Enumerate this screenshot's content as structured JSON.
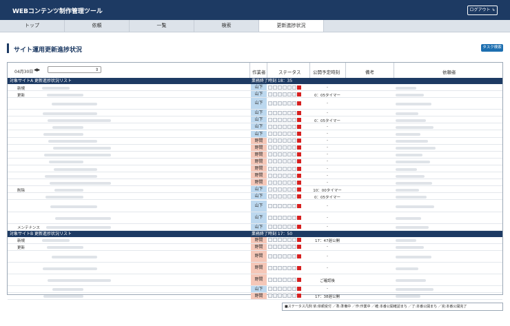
{
  "header": {
    "app_title": "WEBコンテンツ制作管理ツール",
    "logout_label": "ログアウト"
  },
  "tabs": [
    {
      "label": "トップ"
    },
    {
      "label": "依頼"
    },
    {
      "label": "一覧"
    },
    {
      "label": "検索"
    },
    {
      "label": "更新進捗状況",
      "active": true
    }
  ],
  "page": {
    "title": "サイト運用更新進捗状況",
    "task_search_label": "タスク検索"
  },
  "table": {
    "date": "04月30日",
    "columns": {
      "worker": "作業者",
      "status": "ステータス",
      "publish": "公開予定時刻",
      "note": "備考",
      "requester": "依頼者"
    },
    "sections": [
      {
        "name": "対象サイトA 更新進捗状況リスト",
        "end_time": "業務終了時刻 18：35",
        "rows": [
          {
            "category": "新規",
            "worker": "山下",
            "publish": "-"
          },
          {
            "category": "更新",
            "worker": "山下",
            "publish": "0：05タイマー"
          },
          {
            "category": "",
            "worker": "山下",
            "publish": "-"
          },
          {
            "category": "",
            "worker": "山下",
            "publish": "-"
          },
          {
            "category": "",
            "worker": "山下",
            "publish": "0：05タイマー"
          },
          {
            "category": "",
            "worker": "山下",
            "publish": "-"
          },
          {
            "category": "",
            "worker": "山下",
            "publish": "-"
          },
          {
            "category": "",
            "worker": "野間",
            "publish": "-"
          },
          {
            "category": "",
            "worker": "野間",
            "publish": "-"
          },
          {
            "category": "",
            "worker": "野間",
            "publish": "-"
          },
          {
            "category": "",
            "worker": "野間",
            "publish": "-"
          },
          {
            "category": "",
            "worker": "野間",
            "publish": "-"
          },
          {
            "category": "",
            "worker": "野間",
            "publish": "-"
          },
          {
            "category": "",
            "worker": "野間",
            "publish": "-"
          },
          {
            "category": "削除",
            "worker": "山下",
            "publish": "10：00タイマー"
          },
          {
            "category": "",
            "worker": "山下",
            "publish": "0：05タイマー"
          },
          {
            "category": "",
            "worker": "山下",
            "publish": "-"
          },
          {
            "category": "",
            "worker": "山下",
            "publish": "-"
          },
          {
            "category": "メンテナンス",
            "worker": "山下",
            "publish": "-"
          }
        ]
      },
      {
        "name": "対象サイトB 更新進捗状況リスト",
        "end_time": "業務終了時刻 17：50",
        "rows": [
          {
            "category": "新規",
            "worker": "野間",
            "publish": "17：47遅公開"
          },
          {
            "category": "更新",
            "worker": "野間",
            "publish": "-"
          },
          {
            "category": "",
            "worker": "野間",
            "publish": "-"
          },
          {
            "category": "",
            "worker": "野間",
            "publish": "-"
          },
          {
            "category": "",
            "worker": "野間",
            "publish": "ご確認後"
          },
          {
            "category": "",
            "worker": "山下",
            "publish": "-"
          },
          {
            "category": "",
            "worker": "野間",
            "publish": "17：38遅公開"
          }
        ]
      }
    ]
  },
  "status_red_glyph": "完",
  "legend": "■ステータス凡例 依:依頼受付 ／準:準備中 ／作:作業中 ／確:本番公開確認まち ／了:本番公開まち ／完:本番公開完了",
  "colors": {
    "navy": "#1d3a63",
    "yamashita": "#bcd8ef",
    "nohara": "#f5c7b8",
    "done_red": "#d62020"
  }
}
